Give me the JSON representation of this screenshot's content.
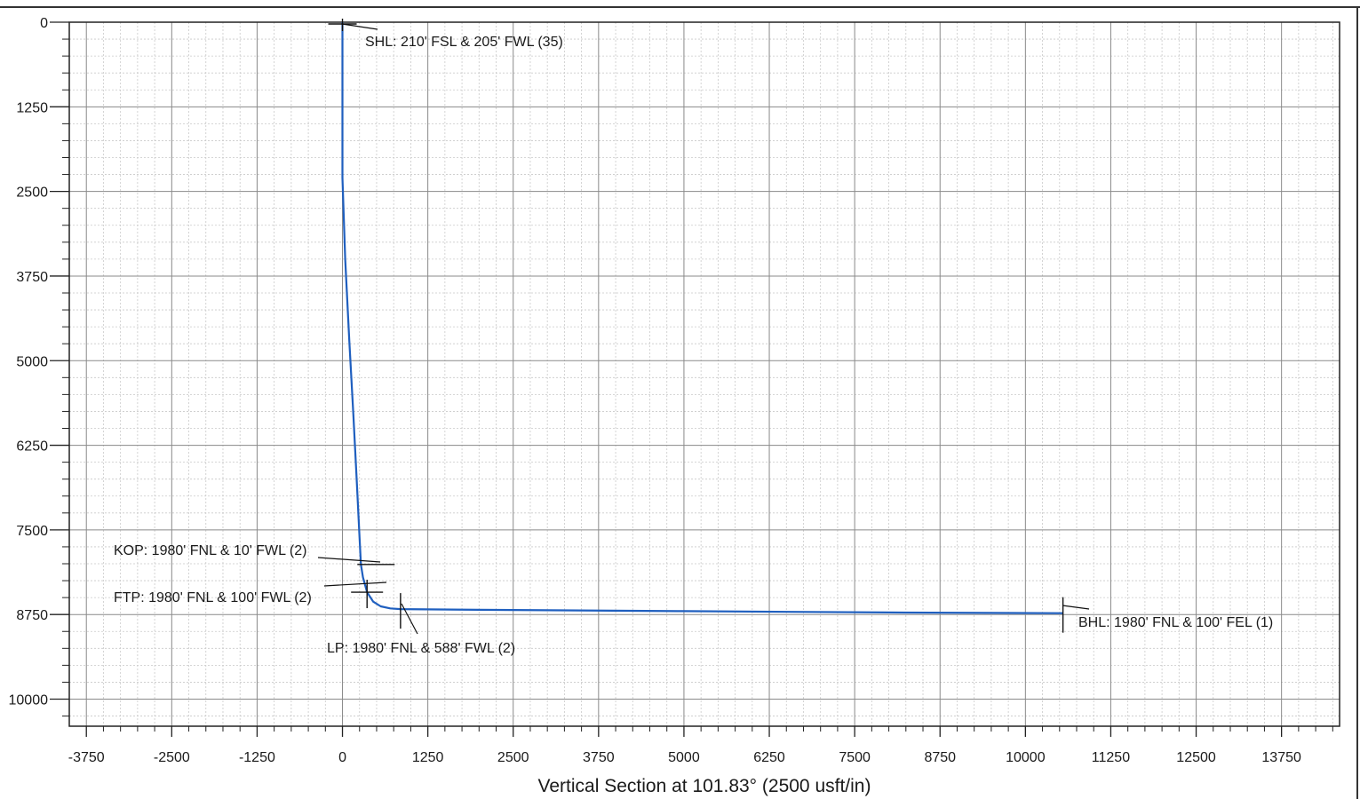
{
  "chart_data": {
    "type": "line",
    "xlabel": "Vertical Section at 101.83° (2500 usft/in)",
    "ylabel": "",
    "xlim": [
      -4000,
      14600
    ],
    "ylim": [
      0,
      10400
    ],
    "y_inverted": true,
    "grid": true,
    "minor_grid": true,
    "x_ticks": [
      -3750,
      -2500,
      -1250,
      0,
      1250,
      2500,
      3750,
      5000,
      6250,
      7500,
      8750,
      10000,
      11250,
      12500,
      13750
    ],
    "x_tick_labels": [
      "-3750",
      "-2500",
      "-1250",
      "0",
      "1250",
      "2500",
      "3750",
      "5000",
      "6250",
      "7500",
      "8750",
      "10000",
      "11250",
      "12500",
      "13750"
    ],
    "y_ticks": [
      0,
      1250,
      2500,
      3750,
      5000,
      6250,
      7500,
      8750,
      10000
    ],
    "y_tick_labels": [
      "0",
      "1250",
      "2500",
      "3750",
      "5000",
      "6250",
      "7500",
      "8750",
      "10000"
    ],
    "series": [
      {
        "color": "#1f5fbf",
        "points": [
          [
            0,
            0
          ],
          [
            0,
            1200
          ],
          [
            0,
            2300
          ],
          [
            40,
            3500
          ],
          [
            100,
            4700
          ],
          [
            160,
            5800
          ],
          [
            210,
            6800
          ],
          [
            250,
            7600
          ],
          [
            270,
            8010
          ],
          [
            300,
            8200
          ],
          [
            360,
            8420
          ],
          [
            450,
            8560
          ],
          [
            560,
            8630
          ],
          [
            700,
            8660
          ],
          [
            850,
            8670
          ],
          [
            2000,
            8680
          ],
          [
            5000,
            8700
          ],
          [
            8000,
            8720
          ],
          [
            10550,
            8730
          ]
        ]
      }
    ],
    "annotations": [
      {
        "text": "SHL: 210' FSL & 205' FWL (35)",
        "x": 0,
        "y": 0
      },
      {
        "text": "KOP: 1980' FNL & 10' FWL (2)",
        "x": 270,
        "y": 8010
      },
      {
        "text": "FTP: 1980' FNL & 100' FWL (2)",
        "x": 360,
        "y": 8420
      },
      {
        "text": "LP: 1980' FNL & 588' FWL (2)",
        "x": 850,
        "y": 8670
      },
      {
        "text": "BHL: 1980' FNL & 100' FEL (1)",
        "x": 10550,
        "y": 8730
      }
    ]
  }
}
